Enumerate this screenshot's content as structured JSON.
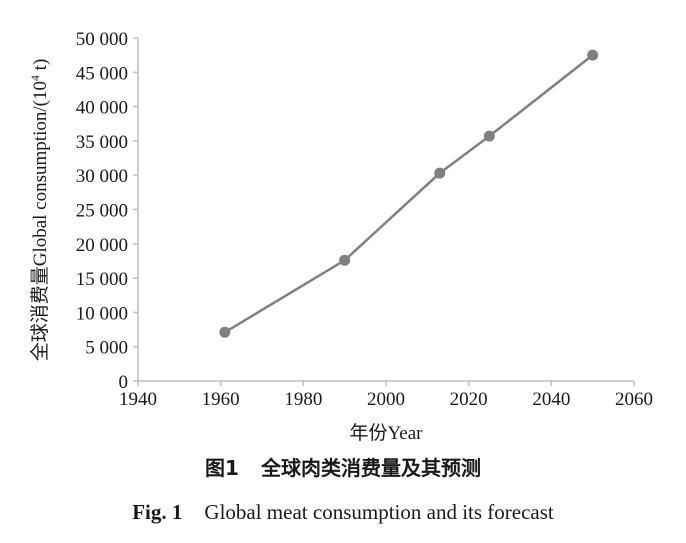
{
  "chart_data": {
    "type": "line",
    "title": "",
    "xlabel": "年份Year",
    "ylabel_cn": "全球消费量",
    "ylabel_en": "Global consumption/(10",
    "ylabel_sup": "4",
    "ylabel_tail": " t)",
    "xlim": [
      1940,
      2060
    ],
    "ylim": [
      0,
      50000
    ],
    "x_ticks": [
      "1940",
      "1960",
      "1980",
      "2000",
      "2020",
      "2040",
      "2060"
    ],
    "y_ticks": [
      "0",
      "5 000",
      "10 000",
      "15 000",
      "20 000",
      "25 000",
      "30 000",
      "35 000",
      "40 000",
      "45 000",
      "50 000"
    ],
    "grid": false,
    "series": [
      {
        "color": "#808080",
        "x": [
          1961,
          1990,
          2013,
          2025,
          2050
        ],
        "y": [
          7100,
          17600,
          30300,
          35700,
          47500
        ]
      }
    ]
  },
  "caption": {
    "cn_num": "图1",
    "cn_text": "全球肉类消费量及其预测",
    "en_num": "Fig. 1",
    "en_text": "Global meat consumption and its forecast"
  }
}
